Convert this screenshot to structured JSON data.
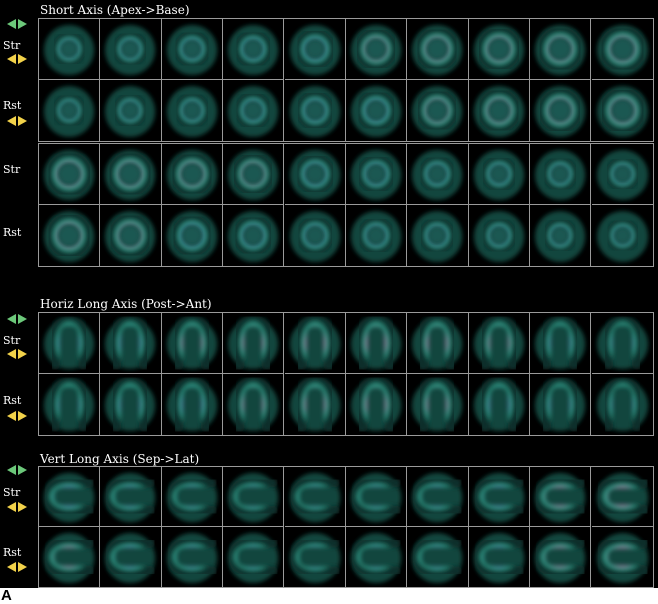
{
  "sections": [
    {
      "id": "short-axis",
      "title": "Short Axis (Apex->Base)",
      "blocks": [
        {
          "rows": [
            {
              "label": "Str",
              "arrows": "up-down",
              "shape": "ring",
              "fill": [
                0.25,
                0.3,
                0.4,
                0.45,
                0.6,
                0.75,
                0.85,
                0.9,
                0.95,
                1.0
              ]
            },
            {
              "label": "Rst",
              "arrows": "down",
              "shape": "ring",
              "fill": [
                0.2,
                0.25,
                0.3,
                0.4,
                0.5,
                0.6,
                0.75,
                0.85,
                0.9,
                0.95
              ]
            }
          ]
        },
        {
          "rows": [
            {
              "label": "Str",
              "arrows": "none",
              "shape": "ring",
              "fill": [
                1.0,
                0.95,
                0.85,
                0.75,
                0.6,
                0.5,
                0.4,
                0.35,
                0.3,
                0.25
              ]
            },
            {
              "label": "Rst",
              "arrows": "none",
              "shape": "ring",
              "fill": [
                0.95,
                0.85,
                0.7,
                0.6,
                0.45,
                0.4,
                0.35,
                0.3,
                0.25,
                0.2
              ]
            }
          ]
        }
      ]
    },
    {
      "id": "horiz-long-axis",
      "title": "Horiz Long Axis (Post->Ant)",
      "blocks": [
        {
          "rows": [
            {
              "label": "Str",
              "arrows": "up-down",
              "shape": "horseshoe",
              "fill": [
                0.5,
                0.65,
                0.75,
                0.8,
                0.9,
                0.95,
                0.9,
                0.75,
                0.6,
                0.45
              ]
            },
            {
              "label": "Rst",
              "arrows": "down",
              "shape": "horseshoe",
              "fill": [
                0.45,
                0.6,
                0.7,
                0.75,
                0.8,
                0.85,
                0.8,
                0.7,
                0.55,
                0.4
              ]
            }
          ]
        }
      ]
    },
    {
      "id": "vert-long-axis",
      "title": "Vert Long Axis (Sep->Lat)",
      "blocks": [
        {
          "rows": [
            {
              "label": "Str",
              "arrows": "up-down",
              "shape": "cshape",
              "fill": [
                0.7,
                0.55,
                0.45,
                0.4,
                0.4,
                0.45,
                0.5,
                0.65,
                0.85,
                1.0
              ]
            },
            {
              "label": "Rst",
              "arrows": "down",
              "shape": "cshape",
              "fill": [
                0.75,
                0.6,
                0.5,
                0.4,
                0.35,
                0.4,
                0.45,
                0.6,
                0.8,
                0.95
              ]
            }
          ]
        }
      ]
    }
  ],
  "figure_letter": "A",
  "colors": {
    "arrow_green": "#6cc87a",
    "arrow_yellow": "#f2d24a",
    "grid_border": "#9a9a9a",
    "background": "#000000"
  }
}
